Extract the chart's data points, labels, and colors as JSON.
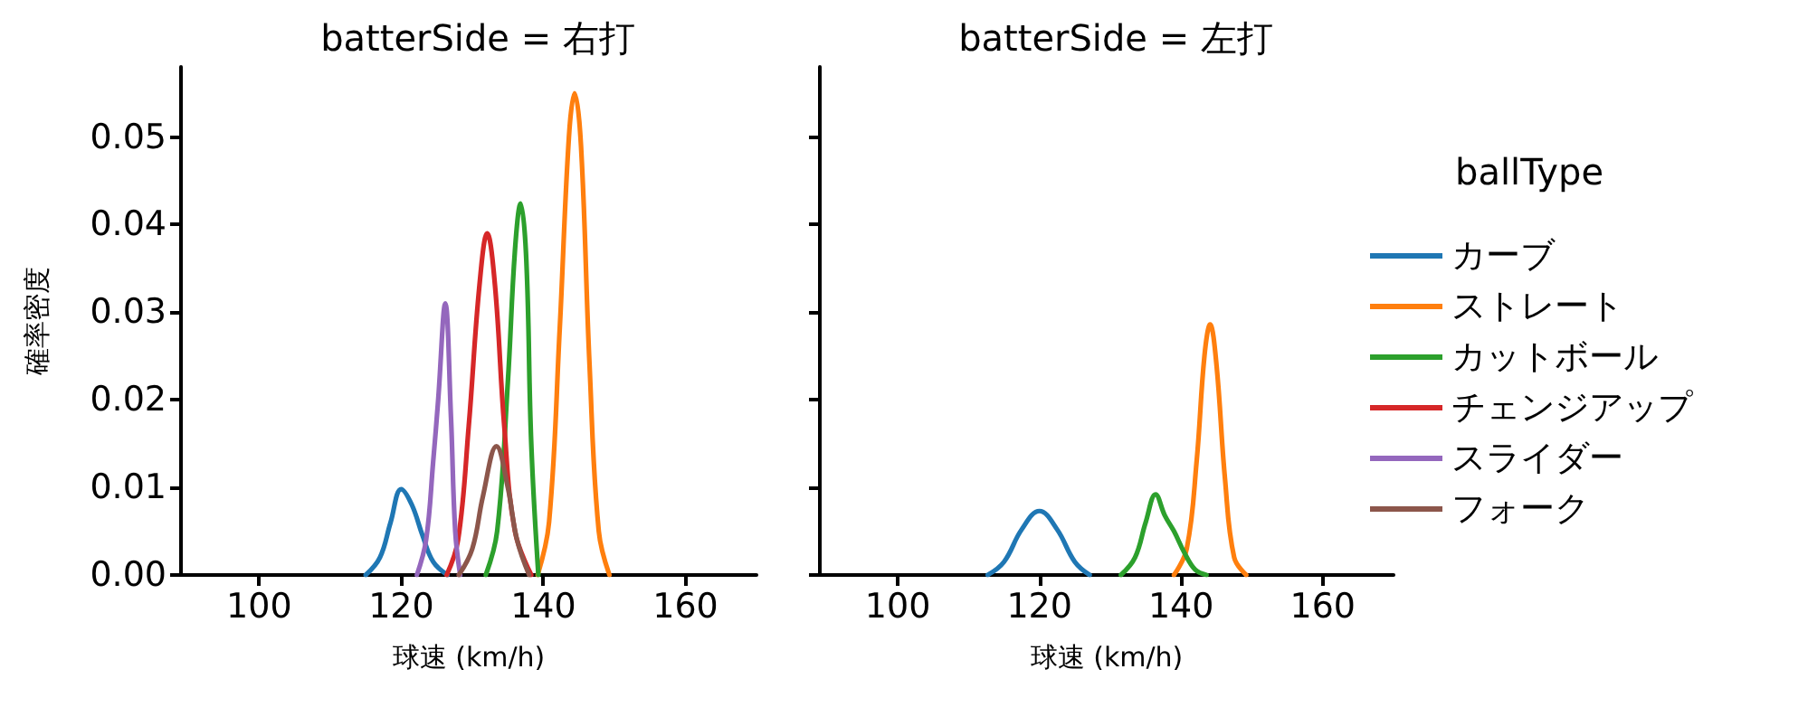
{
  "chart_data": [
    {
      "type": "line",
      "title": "batterSide = 右打",
      "xlabel": "球速 (km/h)",
      "ylabel": "確率密度",
      "legend_title": "ballType",
      "legend": "right",
      "grid": false,
      "marker": "none",
      "line_style": "solid",
      "xlim": [
        89,
        170
      ],
      "xticks": [
        100,
        120,
        140,
        160
      ],
      "ylim": [
        0,
        0.058
      ],
      "yticks": [
        {
          "value": 0,
          "label": "0.00"
        },
        {
          "value": 0.01,
          "label": "0.01"
        },
        {
          "value": 0.02,
          "label": "0.02"
        },
        {
          "value": 0.03,
          "label": "0.03"
        },
        {
          "value": 0.04,
          "label": "0.04"
        },
        {
          "value": 0.05,
          "label": "0.05"
        }
      ],
      "series": [
        {
          "name": "カーブ",
          "color": "#1f77b4",
          "x": [
            115,
            117,
            118.5,
            120,
            121.5,
            123,
            124.5,
            126.5
          ],
          "values": [
            0,
            0.002,
            0.006,
            0.0098,
            0.008,
            0.0045,
            0.0015,
            0
          ]
        },
        {
          "name": "ストレート",
          "color": "#ff7f0e",
          "x": [
            139.2,
            140.8,
            142.3,
            143.6,
            144.4,
            145.3,
            146.5,
            147.8,
            149.3
          ],
          "values": [
            0,
            0.006,
            0.028,
            0.05,
            0.055,
            0.049,
            0.024,
            0.005,
            0
          ]
        },
        {
          "name": "カットボール",
          "color": "#2ca02c",
          "x": [
            131.9,
            133.5,
            135,
            136,
            136.8,
            137.6,
            138.3,
            139.3
          ],
          "values": [
            0,
            0.005,
            0.022,
            0.037,
            0.0424,
            0.036,
            0.015,
            0
          ]
        },
        {
          "name": "チェンジアップ",
          "color": "#d62728",
          "x": [
            126.4,
            128,
            129.5,
            131,
            132.1,
            133.2,
            134.5,
            136,
            138.3
          ],
          "values": [
            0,
            0.004,
            0.017,
            0.033,
            0.039,
            0.033,
            0.017,
            0.005,
            0
          ]
        },
        {
          "name": "スライダー",
          "color": "#9467bd",
          "x": [
            122.2,
            123.5,
            124.5,
            125.2,
            126.2,
            127,
            127.6,
            128.3
          ],
          "values": [
            0,
            0.004,
            0.013,
            0.02,
            0.031,
            0.018,
            0.005,
            0
          ]
        },
        {
          "name": "フォーク",
          "color": "#8c564b",
          "x": [
            128.1,
            130,
            131.5,
            133.4,
            135,
            136.3,
            138
          ],
          "values": [
            0,
            0.003,
            0.009,
            0.0147,
            0.01,
            0.004,
            0
          ]
        }
      ]
    },
    {
      "type": "line",
      "title": "batterSide = 左打",
      "xlabel": "球速 (km/h)",
      "grid": false,
      "marker": "none",
      "line_style": "solid",
      "tick_labels": "x",
      "xlim": [
        89,
        170
      ],
      "xticks": [
        100,
        120,
        140,
        160
      ],
      "ylim": [
        0,
        0.058
      ],
      "yticks": [
        {
          "value": 0,
          "label": null
        },
        {
          "value": 0.01,
          "label": null
        },
        {
          "value": 0.02,
          "label": null
        },
        {
          "value": 0.03,
          "label": null
        },
        {
          "value": 0.04,
          "label": null
        },
        {
          "value": 0.05,
          "label": null
        }
      ],
      "series": [
        {
          "color": "#1f77b4",
          "x": [
            112.7,
            115,
            117.5,
            120,
            122.5,
            125,
            127.1
          ],
          "values": [
            0,
            0.0015,
            0.0052,
            0.0073,
            0.0052,
            0.0015,
            0
          ]
        },
        {
          "color": "#ff7f0e",
          "x": [
            139,
            140.8,
            142.2,
            143.3,
            144.1,
            145,
            146.2,
            147.5,
            149.2
          ],
          "values": [
            0,
            0.003,
            0.013,
            0.025,
            0.0286,
            0.024,
            0.011,
            0.002,
            0
          ]
        },
        {
          "color": "#2ca02c",
          "x": [
            131.5,
            133.5,
            135,
            136.4,
            137.7,
            139,
            140.5,
            142,
            143.6
          ],
          "values": [
            0,
            0.002,
            0.006,
            0.0092,
            0.0068,
            0.005,
            0.0025,
            0.0006,
            0
          ]
        }
      ]
    }
  ]
}
